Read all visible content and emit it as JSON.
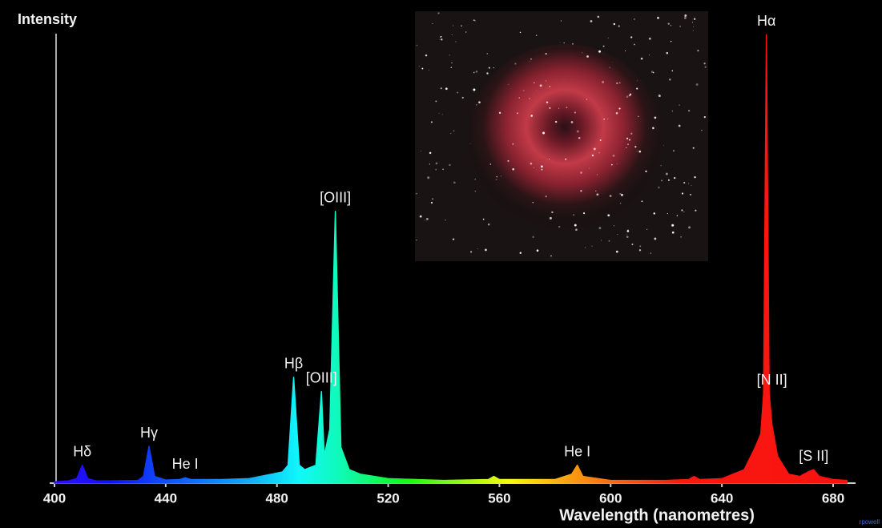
{
  "chart_data": {
    "type": "area",
    "title": "Intensity",
    "x_label": "Wavelength (nanometres)",
    "credit": "rpowell",
    "x": [
      400,
      405,
      408,
      410,
      412,
      415,
      430,
      432,
      434,
      436,
      440,
      445,
      447,
      449,
      460,
      470,
      478,
      482,
      484,
      486,
      488,
      490,
      494,
      496,
      497,
      499,
      501,
      503,
      506,
      510,
      520,
      540,
      556,
      558,
      560,
      580,
      586,
      588,
      590,
      600,
      620,
      628,
      630,
      632,
      640,
      648,
      652,
      654,
      655,
      656,
      657,
      658,
      660,
      664,
      668,
      671,
      673,
      675,
      680,
      685
    ],
    "values": [
      0.3,
      0.5,
      1,
      4,
      1,
      0.5,
      0.6,
      1.5,
      8.2,
      1.5,
      0.7,
      0.8,
      1.2,
      0.8,
      0.8,
      1,
      2,
      2.5,
      4,
      23.6,
      4,
      3,
      4,
      20.4,
      6,
      12,
      60.6,
      8,
      3,
      2,
      1,
      0.6,
      0.8,
      1.5,
      0.8,
      0.8,
      2,
      4,
      1.5,
      0.6,
      0.6,
      0.8,
      1.5,
      0.8,
      1,
      3,
      8,
      11,
      20,
      100,
      20,
      13,
      6,
      2,
      1.5,
      2.5,
      3,
      1.5,
      0.8,
      0.6
    ],
    "xlim": [
      400,
      688
    ],
    "ylim": [
      0,
      102
    ],
    "xticks": [
      400,
      440,
      480,
      520,
      560,
      600,
      640,
      680
    ],
    "annotations": [
      {
        "label": "Hδ",
        "x": 410
      },
      {
        "label": "Hγ",
        "x": 434
      },
      {
        "label": "He I",
        "x": 447
      },
      {
        "label": "Hβ",
        "x": 486
      },
      {
        "label": "[OIII]",
        "x": 496
      },
      {
        "label": "[OIII]",
        "x": 501
      },
      {
        "label": "He I",
        "x": 588
      },
      {
        "label": "Hα",
        "x": 656
      },
      {
        "label": "[N II]",
        "x": 658
      },
      {
        "label": "[S II]",
        "x": 673
      }
    ]
  }
}
